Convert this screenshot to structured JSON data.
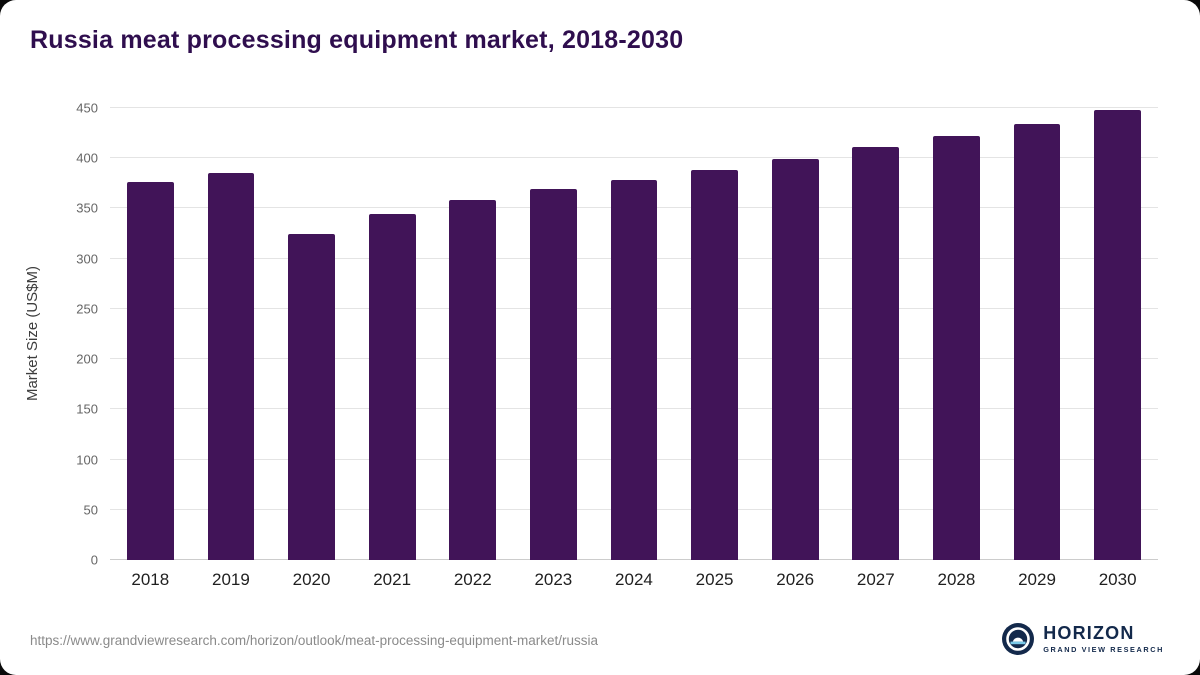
{
  "title": "Russia meat processing equipment market, 2018-2030",
  "source_url": "https://www.grandviewresearch.com/horizon/outlook/meat-processing-equipment-market/russia",
  "logo": {
    "name": "HORIZON",
    "subtitle": "GRAND VIEW RESEARCH"
  },
  "colors": {
    "bar": "#411458",
    "title": "#2f0e4e",
    "logo_navy": "#13294b",
    "logo_light_blue": "#7ac9e8"
  },
  "chart_data": {
    "type": "bar",
    "title": "Russia meat processing equipment market, 2018-2030",
    "categories": [
      "2018",
      "2019",
      "2020",
      "2021",
      "2022",
      "2023",
      "2024",
      "2025",
      "2026",
      "2027",
      "2028",
      "2029",
      "2030"
    ],
    "values": [
      376,
      385,
      325,
      344,
      358,
      369,
      378,
      388,
      399,
      411,
      422,
      434,
      448
    ],
    "xlabel": "",
    "ylabel": "Market Size (US$M)",
    "ylim": [
      0,
      450
    ],
    "yticks": [
      0,
      50,
      100,
      150,
      200,
      250,
      300,
      350,
      400,
      450
    ],
    "grid": "horizontal",
    "legend": "none",
    "bar_color": "#411458"
  }
}
